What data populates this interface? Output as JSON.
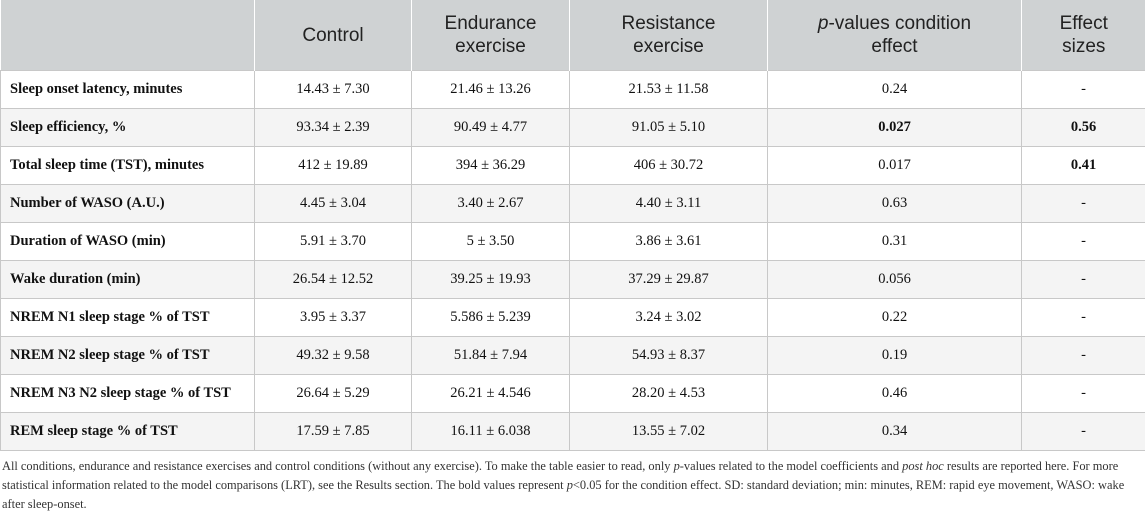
{
  "table": {
    "headers": {
      "col0": "",
      "control": "Control",
      "endurance_line1": "Endurance",
      "endurance_line2": "exercise",
      "resistance_line1": "Resistance",
      "resistance_line2": "exercise",
      "pvalue_italic": "p",
      "pvalue_rest": "-values condition",
      "pvalue_line2": "effect",
      "effect_line1": "Effect",
      "effect_line2": "sizes"
    },
    "rows": [
      {
        "label": "Sleep onset latency, minutes",
        "control": "14.43 ± 7.30",
        "endurance": "21.46 ± 13.26",
        "resistance": "21.53 ± 11.58",
        "p": "0.24",
        "effect": "-"
      },
      {
        "label": "Sleep efficiency, %",
        "control": "93.34 ± 2.39",
        "endurance": "90.49 ± 4.77",
        "resistance": "91.05 ± 5.10",
        "p": "0.027",
        "effect": "0.56"
      },
      {
        "label": "Total sleep time (TST), minutes",
        "control": "412 ± 19.89",
        "endurance": "394 ± 36.29",
        "resistance": "406 ± 30.72",
        "p": "0.017",
        "effect": "0.41"
      },
      {
        "label": "Number of WASO (A.U.)",
        "control": "4.45 ± 3.04",
        "endurance": "3.40 ± 2.67",
        "resistance": "4.40 ± 3.11",
        "p": "0.63",
        "effect": "-"
      },
      {
        "label": "Duration of WASO (min)",
        "control": "5.91 ± 3.70",
        "endurance": "5 ± 3.50",
        "resistance": "3.86 ± 3.61",
        "p": "0.31",
        "effect": "-"
      },
      {
        "label": "Wake duration (min)",
        "control": "26.54 ± 12.52",
        "endurance": "39.25 ± 19.93",
        "resistance": "37.29 ± 29.87",
        "p": "0.056",
        "effect": "-"
      },
      {
        "label": "NREM N1 sleep stage % of TST",
        "control": "3.95 ± 3.37",
        "endurance": "5.586 ± 5.239",
        "resistance": "3.24 ± 3.02",
        "p": "0.22",
        "effect": "-"
      },
      {
        "label": "NREM N2 sleep stage % of TST",
        "control": "49.32 ± 9.58",
        "endurance": "51.84 ± 7.94",
        "resistance": "54.93 ± 8.37",
        "p": "0.19",
        "effect": "-"
      },
      {
        "label": "NREM N3 N2 sleep stage % of TST",
        "control": "26.64 ± 5.29",
        "endurance": "26.21 ± 4.546",
        "resistance": "28.20 ± 4.53",
        "p": "0.46",
        "effect": "-"
      },
      {
        "label": "REM sleep stage % of TST",
        "control": "17.59 ± 7.85",
        "endurance": "16.11 ± 6.038",
        "resistance": "13.55 ± 7.02",
        "p": "0.34",
        "effect": "-"
      }
    ]
  },
  "footnote": {
    "part1": "All conditions, endurance and resistance exercises and control conditions (without any exercise). To make the table easier to read, only ",
    "italic1": "p",
    "part2": "-values related to the model coefficients and ",
    "italic2": "post hoc",
    "part3": " results are reported here. For more statistical information related to the model comparisons (LRT), see the Results section. The bold values represent ",
    "italic3": "p",
    "part4": "<0.05 for the condition effect. SD: standard deviation; min: minutes, REM: rapid eye movement, WASO: wake after sleep-onset."
  }
}
